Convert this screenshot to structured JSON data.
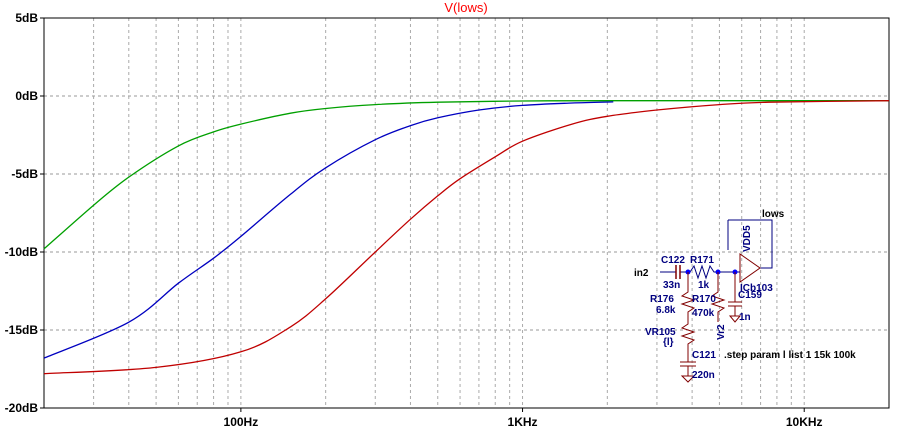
{
  "chart_data": {
    "type": "line",
    "title": "V(lows)",
    "xscale": "log",
    "xlim": [
      20,
      20000
    ],
    "ylim": [
      -20,
      5
    ],
    "y_ticks": [
      5,
      0,
      -5,
      -10,
      -15,
      -20
    ],
    "y_tick_labels": [
      "5dB",
      "0dB",
      "-5dB",
      "-10dB",
      "-15dB",
      "-20dB"
    ],
    "x_ticks": [
      100,
      1000,
      10000
    ],
    "x_tick_labels": [
      "100Hz",
      "1KHz",
      "10KHz"
    ],
    "grid": true,
    "series": [
      {
        "color": "#00a000",
        "x": [
          20,
          30,
          40,
          60,
          80,
          100,
          150,
          200,
          300,
          500,
          1000,
          2000,
          5000,
          20000
        ],
        "y": [
          -9.8,
          -7.0,
          -5.2,
          -3.2,
          -2.3,
          -1.8,
          -1.1,
          -0.8,
          -0.55,
          -0.4,
          -0.32,
          -0.3,
          -0.3,
          -0.3
        ]
      },
      {
        "color": "#0000c0",
        "x": [
          20,
          40,
          60,
          80,
          100,
          150,
          200,
          300,
          400,
          500,
          700,
          1000,
          1500,
          2100
        ],
        "y": [
          -16.8,
          -14.5,
          -12.0,
          -10.4,
          -9.0,
          -6.3,
          -4.6,
          -2.8,
          -1.9,
          -1.4,
          -0.9,
          -0.6,
          -0.45,
          -0.38
        ]
      },
      {
        "color": "#c00000",
        "x": [
          20,
          50,
          100,
          150,
          200,
          300,
          400,
          500,
          600,
          800,
          1000,
          1500,
          2000,
          3000,
          5000,
          7500,
          20000
        ],
        "y": [
          -17.8,
          -17.4,
          -16.4,
          -14.8,
          -13.0,
          -10.0,
          -7.9,
          -6.4,
          -5.3,
          -3.9,
          -2.9,
          -1.8,
          -1.3,
          -0.9,
          -0.55,
          -0.4,
          -0.3
        ]
      }
    ]
  },
  "schematic": {
    "labels": {
      "lows": "lows",
      "vdd5": "VDD5",
      "in2": "in2",
      "c122": "C122",
      "c122_val": "33n",
      "r171": "R171",
      "r171_val": "1k",
      "cb103": "ICb103",
      "r176": "R176",
      "r176_val": "6.8k",
      "r170": "R170",
      "r170_val": "470k",
      "c159": "C159",
      "c159_val": "1n",
      "vr2": "Vr2",
      "vr105": "VR105",
      "vr105_val": "{l}",
      "c121": "C121",
      "c121_val": "220n",
      "step": ".step param l list 1 15k 100k"
    }
  }
}
